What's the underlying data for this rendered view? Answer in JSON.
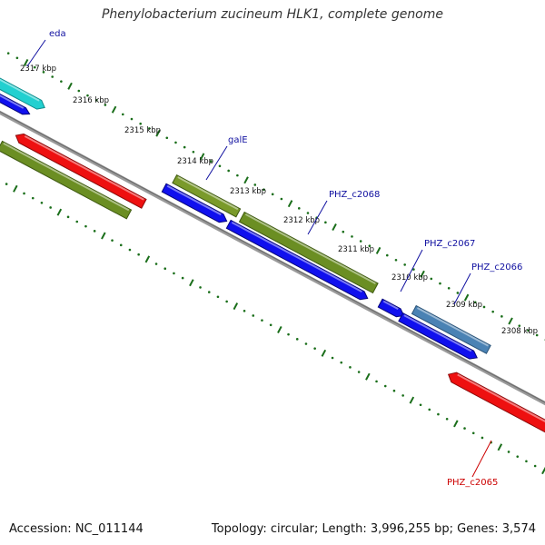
{
  "title": "Phenylobacterium zucineum HLK1, complete genome",
  "footer": {
    "accession": "Accession: NC_011144",
    "summary": "Topology: circular; Length: 3,996,255 bp; Genes: 3,574"
  },
  "colors": {
    "backbone": "#808080",
    "tick": "#1a6e1a",
    "gene_label_default": "#1010a0",
    "gene_label_highlight": "#cc0000",
    "cyan": "#22d0d0",
    "blue": "#1010ee",
    "olive": "#6b8e23",
    "red": "#ee1010",
    "steel": "#4a82b4"
  },
  "kbp_ticks": [
    {
      "label": "2317 kbp"
    },
    {
      "label": "2316 kbp"
    },
    {
      "label": "2315 kbp"
    },
    {
      "label": "2314 kbp"
    },
    {
      "label": "2313 kbp"
    },
    {
      "label": "2312 kbp"
    },
    {
      "label": "2311 kbp"
    },
    {
      "label": "2310 kbp"
    },
    {
      "label": "2309 kbp"
    },
    {
      "label": "2308 kbp"
    }
  ],
  "gene_labels": [
    {
      "text": "eda",
      "color": "#1010a0"
    },
    {
      "text": "galE",
      "color": "#1010a0"
    },
    {
      "text": "PHZ_c2068",
      "color": "#1010a0"
    },
    {
      "text": "PHZ_c2067",
      "color": "#1010a0"
    },
    {
      "text": "PHZ_c2066",
      "color": "#1010a0"
    },
    {
      "text": "PHZ_c2065",
      "color": "#cc0000"
    }
  ]
}
